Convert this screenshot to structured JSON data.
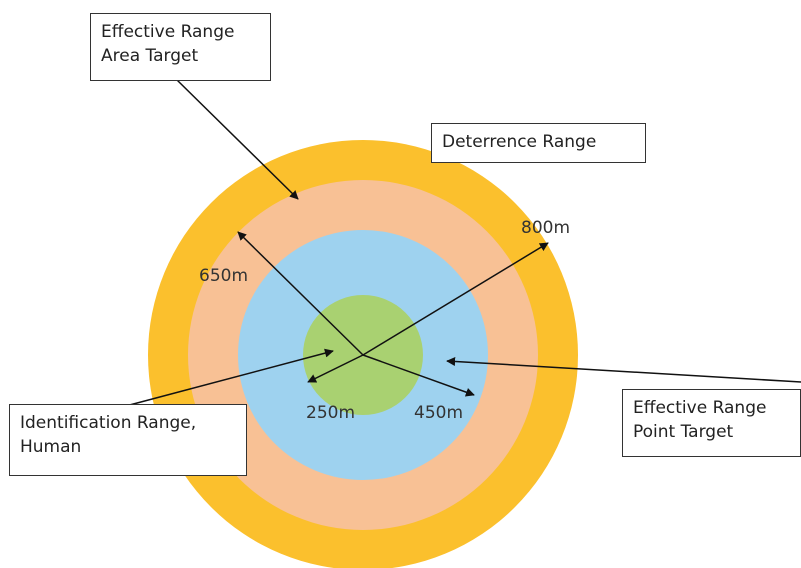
{
  "colors": {
    "deterrence": "#FBC02D",
    "area": "#F8C195",
    "point": "#9ED2EF",
    "identification": "#A9D171",
    "arrow": "#111111"
  },
  "labels": {
    "effective_area": [
      "Effective Range",
      "Area Target"
    ],
    "deterrence": "Deterrence Range",
    "effective_point": [
      "Effective Range",
      "Point Target"
    ],
    "identification": [
      "Identification Range,",
      "Human"
    ]
  },
  "distances": {
    "d800": "800m",
    "d650": "650m",
    "d250": "250m",
    "d450": "450m"
  }
}
